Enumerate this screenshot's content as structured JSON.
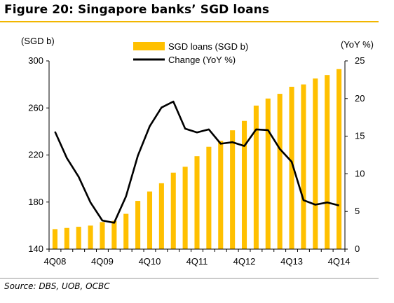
{
  "page": {
    "title": "Figure 20: Singapore banks’ SGD loans",
    "source": "Source: DBS, UOB, OCBC"
  },
  "chart_data": {
    "type": "bar",
    "left_axis_label": "(SGD b)",
    "right_axis_label": "(YoY %)",
    "y_left_range": [
      140,
      300
    ],
    "y_left_ticks": [
      140,
      180,
      220,
      260,
      300
    ],
    "y_right_range": [
      0,
      25
    ],
    "y_right_ticks": [
      0,
      5,
      10,
      15,
      20,
      25
    ],
    "x_tick_labels": [
      "4Q08",
      "4Q09",
      "4Q10",
      "4Q11",
      "4Q12",
      "4Q13",
      "4Q14"
    ],
    "grid": false,
    "legend_position": "top-center",
    "colors": {
      "bars": "#FFC000",
      "line": "#000000",
      "title_rule": "#F2B600"
    },
    "series": [
      {
        "name": "SGD loans (SGD b)",
        "type": "bar",
        "axis": "left",
        "values": [
          157,
          158,
          159,
          160,
          163,
          164,
          170,
          181,
          189,
          196,
          205,
          210,
          219,
          227,
          232,
          241,
          249,
          262,
          268,
          272,
          278,
          280,
          285,
          288,
          293
        ]
      },
      {
        "name": "Change (YoY %)",
        "type": "line",
        "axis": "right",
        "values": [
          15.6,
          12.1,
          9.6,
          6.2,
          3.8,
          3.5,
          7.0,
          12.4,
          16.3,
          18.8,
          19.6,
          16.0,
          15.5,
          15.9,
          14.0,
          14.2,
          13.7,
          15.9,
          15.8,
          13.3,
          11.6,
          6.5,
          5.9,
          6.2,
          5.8
        ]
      }
    ]
  }
}
